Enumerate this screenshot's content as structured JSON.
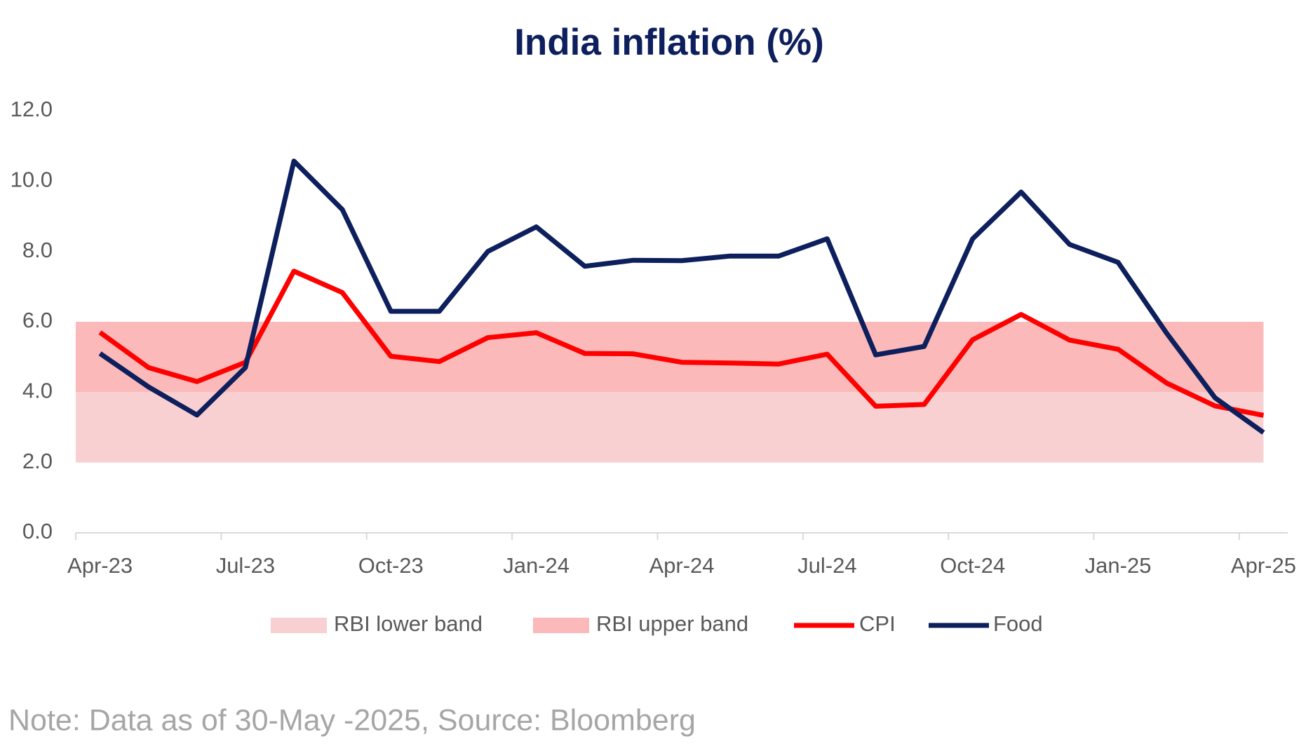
{
  "chart_data": {
    "type": "line",
    "title": "India inflation (%)",
    "categories": [
      "Apr-23",
      null,
      null,
      "Jul-23",
      null,
      null,
      "Oct-23",
      null,
      null,
      "Jan-24",
      null,
      null,
      "Apr-24",
      null,
      null,
      "Jul-24",
      null,
      null,
      "Oct-24",
      null,
      null,
      "Jan-25",
      null,
      null,
      "Apr-25"
    ],
    "bands": [
      {
        "name": "RBI lower band",
        "color": "#f9d0d2",
        "range": [
          2,
          4
        ]
      },
      {
        "name": "RBI upper band",
        "color": "#fbb9b9",
        "range": [
          4,
          6
        ]
      }
    ],
    "series": [
      {
        "name": "CPI",
        "color": "#ff0000",
        "values": [
          5.7,
          4.7,
          4.3,
          4.85,
          7.44,
          6.83,
          5.02,
          4.87,
          5.55,
          5.69,
          5.1,
          5.09,
          4.85,
          4.83,
          4.8,
          5.08,
          3.6,
          3.65,
          5.49,
          6.21,
          5.48,
          5.22,
          4.26,
          3.61,
          3.34
        ]
      },
      {
        "name": "Food",
        "color": "#0d1f5c",
        "values": [
          5.1,
          4.15,
          3.35,
          4.7,
          10.57,
          9.19,
          6.3,
          6.3,
          8.0,
          8.7,
          7.58,
          7.75,
          7.74,
          7.87,
          7.87,
          8.36,
          5.06,
          5.3,
          8.36,
          9.69,
          8.2,
          7.69,
          5.68,
          3.84,
          2.85
        ]
      }
    ],
    "ylim": [
      0,
      12
    ],
    "yticks": [
      {
        "value": 0,
        "label": "0.0"
      },
      {
        "value": 2,
        "label": "2.0"
      },
      {
        "value": 4,
        "label": "4.0"
      },
      {
        "value": 6,
        "label": "6.0"
      },
      {
        "value": 8,
        "label": "8.0"
      },
      {
        "value": 10,
        "label": "10.0"
      },
      {
        "value": 12,
        "label": "12.0"
      }
    ],
    "grid": false,
    "legend": "bottom",
    "note": "Note: Data as of 30-May -2025, Source: Bloomberg"
  }
}
